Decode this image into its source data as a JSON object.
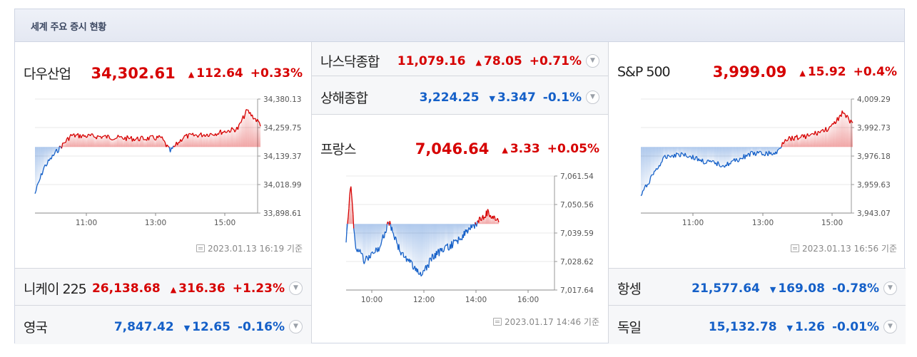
{
  "header": {
    "title": "세계 주요 증시 현황"
  },
  "colors": {
    "up": "#d60000",
    "down": "#1560c8"
  },
  "dow": {
    "name": "다우산업",
    "value": "34,302.61",
    "change": "112.64",
    "pct": "+0.33%",
    "direction": "up",
    "y_ticks": [
      "34,380.13",
      "34,259.75",
      "34,139.37",
      "34,018.99",
      "33,898.61"
    ],
    "x_ticks": [
      "11:00",
      "13:00",
      "15:00"
    ],
    "basis": "2023.01.13 16:19 기준"
  },
  "nikkei": {
    "name": "니케이 225",
    "value": "26,138.68",
    "change": "316.36",
    "pct": "+1.23%",
    "direction": "up",
    "dropdown_icon": "chevron-down-icon"
  },
  "uk": {
    "name": "영국",
    "value": "7,847.42",
    "change": "12.65",
    "pct": "-0.16%",
    "direction": "down",
    "dropdown_icon": "chevron-down-icon"
  },
  "nasdaq": {
    "name": "나스닥종합",
    "value": "11,079.16",
    "change": "78.05",
    "pct": "+0.71%",
    "direction": "up",
    "dropdown_icon": "chevron-down-icon"
  },
  "shanghai": {
    "name": "상해종합",
    "value": "3,224.25",
    "change": "3.347",
    "pct": "-0.1%",
    "direction": "down",
    "dropdown_icon": "chevron-down-icon"
  },
  "france": {
    "name": "프랑스",
    "value": "7,046.64",
    "change": "3.33",
    "pct": "+0.05%",
    "direction": "up",
    "y_ticks": [
      "7,061.54",
      "7,050.56",
      "7,039.59",
      "7,028.62",
      "7,017.64"
    ],
    "x_ticks": [
      "10:00",
      "12:00",
      "14:00",
      "16:00"
    ],
    "basis": "2023.01.17 14:46 기준"
  },
  "sp500": {
    "name": "S&P 500",
    "value": "3,999.09",
    "change": "15.92",
    "pct": "+0.4%",
    "direction": "up",
    "y_ticks": [
      "4,009.29",
      "3,992.73",
      "3,976.18",
      "3,959.63",
      "3,943.07"
    ],
    "x_ticks": [
      "11:00",
      "13:00",
      "15:00"
    ],
    "basis": "2023.01.13 16:56 기준"
  },
  "hangseng": {
    "name": "항셍",
    "value": "21,577.64",
    "change": "169.08",
    "pct": "-0.78%",
    "direction": "down",
    "dropdown_icon": "chevron-down-icon"
  },
  "germany": {
    "name": "독일",
    "value": "15,132.78",
    "change": "1.26",
    "pct": "-0.01%",
    "direction": "down",
    "dropdown_icon": "chevron-down-icon"
  }
}
